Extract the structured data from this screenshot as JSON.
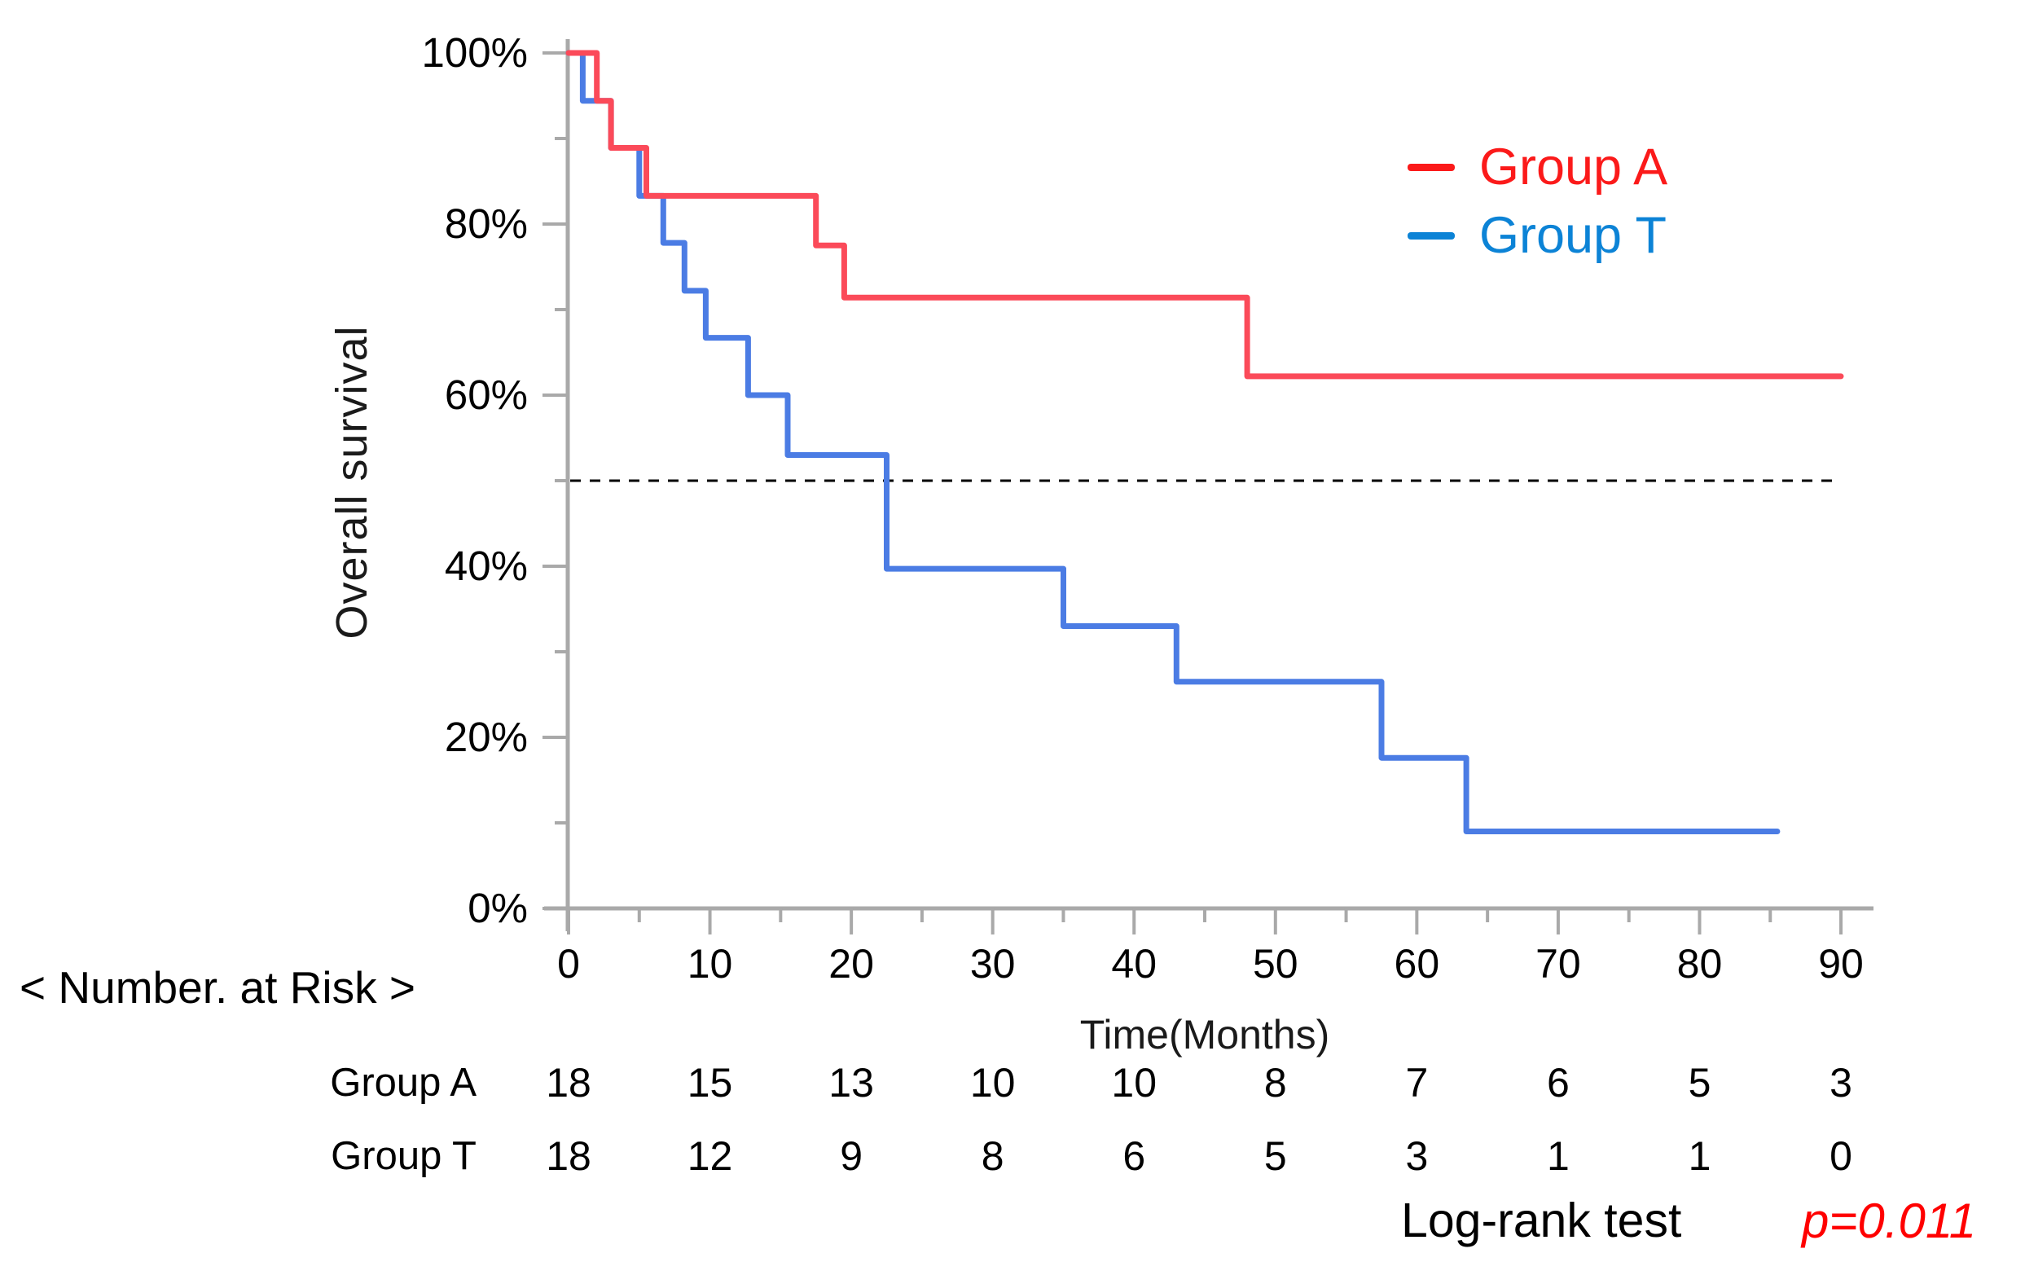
{
  "chart_data": {
    "type": "line",
    "subtype": "kaplan-meier-step",
    "title": "",
    "xlabel": "Time(Months)",
    "ylabel": "Overall survival",
    "xlim": [
      0,
      90
    ],
    "ylim": [
      0,
      100
    ],
    "x_major_ticks": [
      0,
      10,
      20,
      30,
      40,
      50,
      60,
      70,
      80,
      90
    ],
    "x_minor_ticks": [
      5,
      15,
      25,
      35,
      45,
      55,
      65,
      75,
      85
    ],
    "y_major_ticks": [
      0,
      20,
      40,
      60,
      80,
      100
    ],
    "y_minor_ticks": [
      10,
      30,
      50,
      70,
      90
    ],
    "y_tick_suffix": "%",
    "grid": false,
    "axis_color": "#a9a9a9",
    "reference_line": {
      "y": 50,
      "style": "dashed",
      "color": "#000000"
    },
    "legend_position": "top-right",
    "series": [
      {
        "name": "Group T",
        "color": "#4b7ce4",
        "points": [
          [
            0,
            100
          ],
          [
            1,
            100
          ],
          [
            1,
            94.4
          ],
          [
            3,
            94.4
          ],
          [
            3,
            88.9
          ],
          [
            5,
            88.9
          ],
          [
            5,
            83.3
          ],
          [
            6.7,
            83.3
          ],
          [
            6.7,
            77.8
          ],
          [
            8.2,
            77.8
          ],
          [
            8.2,
            72.2
          ],
          [
            9.7,
            72.2
          ],
          [
            9.7,
            66.7
          ],
          [
            12.7,
            66.7
          ],
          [
            12.7,
            60.0
          ],
          [
            15.5,
            60.0
          ],
          [
            15.5,
            53.0
          ],
          [
            22.5,
            53.0
          ],
          [
            22.5,
            39.7
          ],
          [
            35,
            39.7
          ],
          [
            35,
            33.0
          ],
          [
            43,
            33.0
          ],
          [
            43,
            26.5
          ],
          [
            57.5,
            26.5
          ],
          [
            57.5,
            17.6
          ],
          [
            63.5,
            17.6
          ],
          [
            63.5,
            9.0
          ],
          [
            85.5,
            9.0
          ]
        ]
      },
      {
        "name": "Group A",
        "color": "#fb4a59",
        "points": [
          [
            0,
            100
          ],
          [
            2,
            100
          ],
          [
            2,
            94.4
          ],
          [
            3,
            94.4
          ],
          [
            3,
            88.9
          ],
          [
            5.5,
            88.9
          ],
          [
            5.5,
            83.3
          ],
          [
            17.5,
            83.3
          ],
          [
            17.5,
            77.5
          ],
          [
            19.5,
            77.5
          ],
          [
            19.5,
            71.4
          ],
          [
            48,
            71.4
          ],
          [
            48,
            62.2
          ],
          [
            90,
            62.2
          ]
        ]
      }
    ]
  },
  "legend": {
    "items": [
      {
        "label": "Group A",
        "color": "#fb1a1a"
      },
      {
        "label": "Group T",
        "color": "#0c83d6"
      }
    ]
  },
  "risk_table": {
    "heading": "< Number. at Risk >",
    "columns": [
      0,
      10,
      20,
      30,
      40,
      50,
      60,
      70,
      80,
      90
    ],
    "rows": [
      {
        "label": "Group A",
        "values": [
          "18",
          "15",
          "13",
          "10",
          "10",
          "8",
          "7",
          "6",
          "5",
          "3"
        ]
      },
      {
        "label": "Group T",
        "values": [
          "18",
          "12",
          "9",
          "8",
          "6",
          "5",
          "3",
          "1",
          "1",
          "0"
        ]
      }
    ]
  },
  "footer": {
    "test_label": "Log-rank test",
    "p_value": "p=0.011",
    "p_color": "#ff0000"
  }
}
